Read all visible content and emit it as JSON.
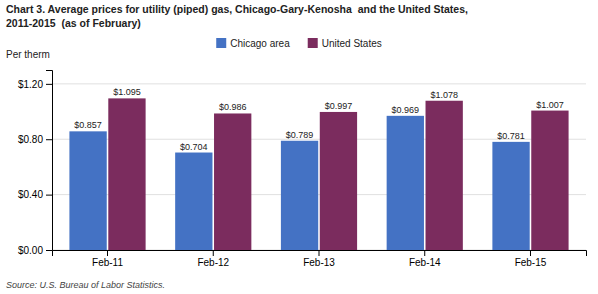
{
  "chart_data": {
    "type": "bar",
    "title": [
      "Chart 3. Average prices for utility (piped) gas, Chicago-Gary-Kenosha  and the United States,",
      "2011-2015  (as of February)"
    ],
    "ylabel": "Per therm",
    "annotations": [
      "Source: U.S. Bureau of Labor Statistics."
    ],
    "categories": [
      "Feb-11",
      "Feb-12",
      "Feb-13",
      "Feb-14",
      "Feb-15"
    ],
    "series": [
      {
        "name": "Chicago area",
        "color": "#4472C4",
        "values": [
          0.857,
          0.704,
          0.789,
          0.969,
          0.781
        ],
        "value_labels": [
          "$0.857",
          "$0.704",
          "$0.789",
          "$0.969",
          "$0.781"
        ]
      },
      {
        "name": "United States",
        "color": "#7B2C5E",
        "values": [
          1.095,
          0.986,
          0.997,
          1.078,
          1.007
        ],
        "value_labels": [
          "$1.095",
          "$0.986",
          "$0.997",
          "$1.078",
          "$1.007"
        ]
      }
    ],
    "ylim": [
      0,
      1.3
    ],
    "yticks": [
      {
        "value": 0.0,
        "label": "$0.00"
      },
      {
        "value": 0.4,
        "label": "$0.40"
      },
      {
        "value": 0.8,
        "label": "$0.80"
      },
      {
        "value": 1.2,
        "label": "$1.20"
      }
    ],
    "grid": true,
    "legend": "top",
    "data_labels": true
  }
}
